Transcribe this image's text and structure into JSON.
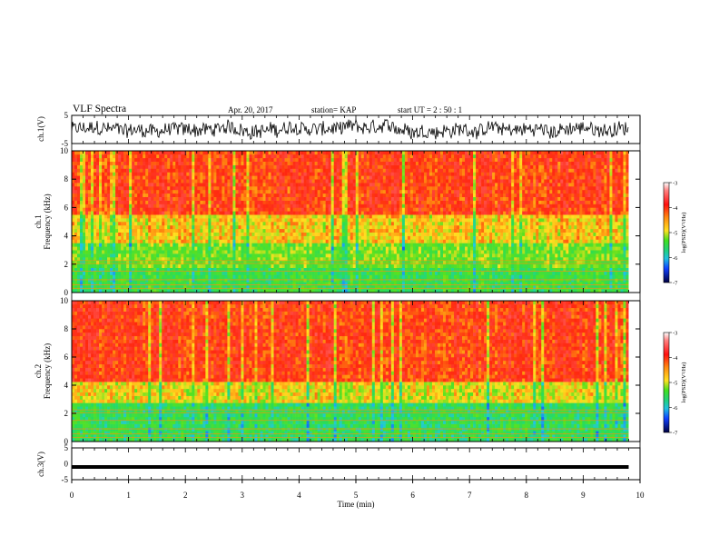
{
  "header": {
    "title": "VLF Spectra",
    "date": "Apr. 20, 2017",
    "station": "station= KAP",
    "start": "start  UT =   2 : 50 : 1"
  },
  "colors": {
    "spectro_red": "#ff2a10",
    "spectro_orange": "#ff7a10",
    "spectro_yellow": "#ffe020",
    "spectro_green": "#30e040",
    "spectro_cyan": "#20d0e0",
    "spectro_blue": "#1030ff",
    "trace": "#000000"
  },
  "chart_data": [
    {
      "type": "line",
      "panel": "ch1-waveform",
      "ylabel": "ch.1(V)",
      "ylim": [
        -5,
        5
      ],
      "yticks": [
        "5",
        "-5"
      ],
      "xlim": [
        0,
        10
      ],
      "series": [
        {
          "values_description": "broadband noise trace",
          "amplitude_range": [
            -3.5,
            3.5
          ]
        }
      ]
    },
    {
      "type": "heatmap",
      "panel": "ch1-spectrogram",
      "ylabel": "ch.1\nFrequency (kHz)",
      "ylim": [
        0,
        10
      ],
      "yticks": [
        "0",
        "2",
        "4",
        "6",
        "8",
        "10"
      ],
      "xlim": [
        0,
        10
      ],
      "colorbar": {
        "label": "log(PSD)(V²/Hz)",
        "range": [
          -7,
          -3
        ],
        "ticks": [
          "-3",
          "-4",
          "-5",
          "-6",
          "-7"
        ]
      },
      "bands": [
        {
          "from_khz": 0,
          "to_khz": 1.8,
          "level": -5.3
        },
        {
          "from_khz": 1.8,
          "to_khz": 3.6,
          "level": -5.0
        },
        {
          "from_khz": 3.6,
          "to_khz": 5.5,
          "level": -4.5
        },
        {
          "from_khz": 5.5,
          "to_khz": 10,
          "level": -3.8
        }
      ],
      "cutoff_khz": 10
    },
    {
      "type": "heatmap",
      "panel": "ch2-spectrogram",
      "ylabel": "ch.2\nFrequency (kHz)",
      "ylim": [
        0,
        10
      ],
      "yticks": [
        "0",
        "2",
        "4",
        "6",
        "8",
        "10"
      ],
      "xlim": [
        0,
        10
      ],
      "colorbar": {
        "label": "log(PSD)(V²/Hz)",
        "range": [
          -7,
          -3
        ],
        "ticks": [
          "-3",
          "-4",
          "-5",
          "-6",
          "-7"
        ]
      },
      "bands": [
        {
          "from_khz": 0,
          "to_khz": 2.8,
          "level": -5.4
        },
        {
          "from_khz": 2.8,
          "to_khz": 4.2,
          "level": -4.6
        },
        {
          "from_khz": 4.2,
          "to_khz": 10,
          "level": -3.8
        }
      ],
      "cutoff_khz": 10
    },
    {
      "type": "line",
      "panel": "ch3-waveform",
      "ylabel": "ch.3(V)",
      "ylim": [
        -5,
        5
      ],
      "yticks": [
        "5",
        "0",
        "-5"
      ],
      "xlim": [
        0,
        10
      ],
      "series": [
        {
          "constant_value": -1
        }
      ]
    }
  ],
  "xaxis": {
    "label": "Time (min)",
    "ticks": [
      "0",
      "1",
      "2",
      "3",
      "4",
      "5",
      "6",
      "7",
      "8",
      "9",
      "10"
    ],
    "data_end_min": 9.8
  }
}
